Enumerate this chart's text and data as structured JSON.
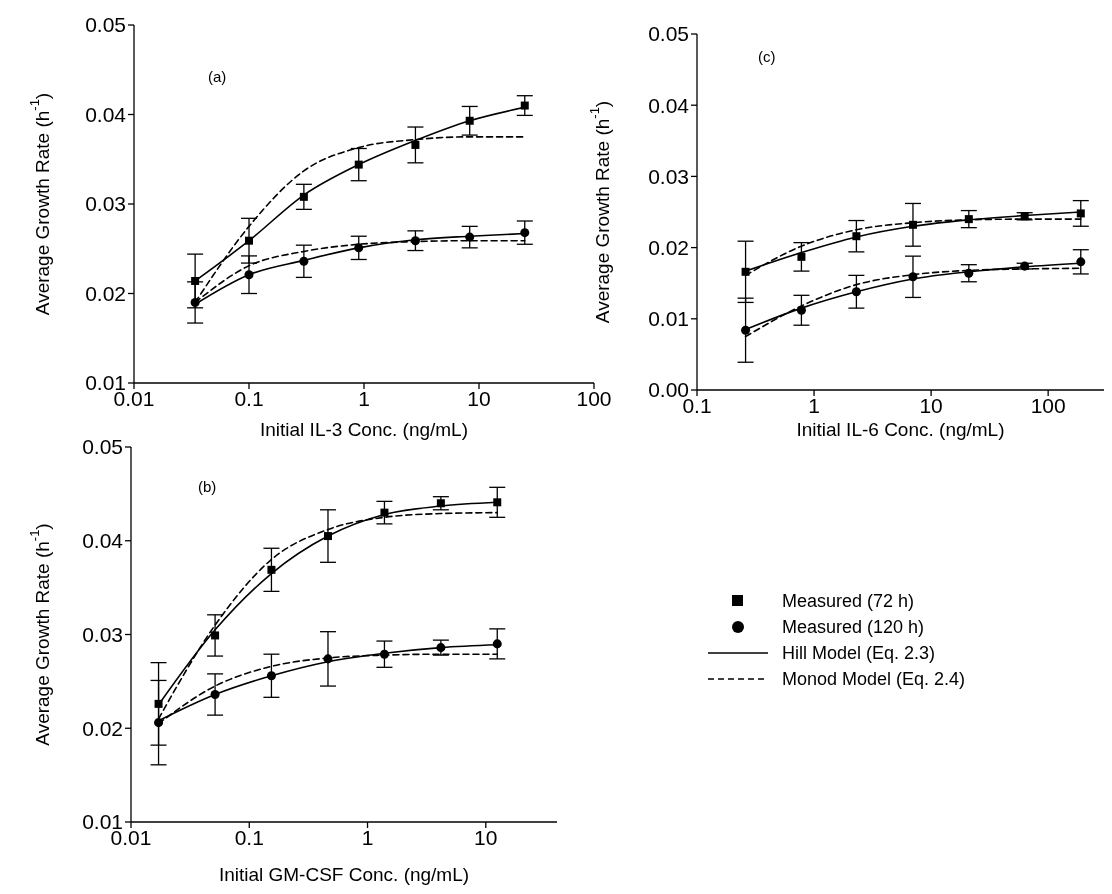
{
  "chart_data": [
    {
      "type": "scatter",
      "xlabel": "Initial IL-3 Conc. (ng/mL)",
      "ylabel": "Average Growth Rate (h$^{-1}$)",
      "annotations": [
        "(a)"
      ],
      "log": "x",
      "xlim": [
        0.01,
        100
      ],
      "xticks": [
        0.01,
        0.1,
        1,
        10,
        100
      ],
      "ylim": [
        0.01,
        0.05
      ],
      "yticks": [
        0.01,
        0.02,
        0.03,
        0.04,
        0.05
      ],
      "grid": false,
      "legend": false,
      "x": [
        0.034,
        0.1,
        0.3,
        0.9,
        2.8,
        8.3,
        25
      ],
      "series": [
        {
          "type": "scatter",
          "marker": "square",
          "color": "#000000",
          "values": [
            0.0214,
            0.0259,
            0.0308,
            0.0344,
            0.0366,
            0.0393,
            0.041
          ],
          "errors": [
            0.003,
            0.0025,
            0.0014,
            0.0018,
            0.002,
            0.0016,
            0.0011
          ]
        },
        {
          "type": "scatter",
          "marker": "circle",
          "color": "#000000",
          "values": [
            0.019,
            0.0221,
            0.0236,
            0.0251,
            0.0259,
            0.0263,
            0.0268
          ],
          "errors": [
            0.0023,
            0.0021,
            0.0018,
            0.0013,
            0.0011,
            0.0012,
            0.0013
          ]
        },
        {
          "type": "line",
          "marker": "none",
          "line_style": "solid",
          "color": "#000000",
          "values": [
            0.0214,
            0.0259,
            0.031,
            0.0344,
            0.0371,
            0.0393,
            0.0408
          ]
        },
        {
          "type": "line",
          "marker": "none",
          "line_style": "solid",
          "color": "#000000",
          "values": [
            0.0188,
            0.0221,
            0.0237,
            0.0251,
            0.026,
            0.0264,
            0.0267
          ]
        },
        {
          "type": "line",
          "marker": "none",
          "line_style": "dashed",
          "color": "#000000",
          "values": [
            0.019,
            0.0275,
            0.0337,
            0.0363,
            0.0372,
            0.0375,
            0.0375
          ]
        },
        {
          "type": "line",
          "marker": "none",
          "line_style": "dashed",
          "color": "#000000",
          "values": [
            0.019,
            0.0231,
            0.0247,
            0.0255,
            0.0258,
            0.0259,
            0.0259
          ]
        }
      ]
    },
    {
      "type": "scatter",
      "xlabel": "Initial IL-6 Conc. (ng/mL)",
      "ylabel": "Average Growth Rate (h$^{-1}$)",
      "annotations": [
        "(c)"
      ],
      "log": "x",
      "xlim": [
        0.1,
        300
      ],
      "xticks": [
        0.1,
        1,
        10,
        100
      ],
      "ylim": [
        0,
        0.05
      ],
      "yticks": [
        {
          "value": 0,
          "label": "0.00"
        },
        0.01,
        0.02,
        0.03,
        0.04,
        0.05
      ],
      "grid": false,
      "legend": false,
      "x": [
        0.26,
        0.78,
        2.3,
        7,
        21,
        63,
        190
      ],
      "series": [
        {
          "type": "scatter",
          "marker": "square",
          "color": "#000000",
          "values": [
            0.0166,
            0.0187,
            0.0216,
            0.0232,
            0.024,
            0.0244,
            0.0248
          ],
          "errors": [
            0.0043,
            0.002,
            0.0022,
            0.003,
            0.0012,
            0.0005,
            0.0018
          ]
        },
        {
          "type": "scatter",
          "marker": "circle",
          "color": "#000000",
          "values": [
            0.0084,
            0.0112,
            0.0138,
            0.0159,
            0.0164,
            0.0174,
            0.018
          ],
          "errors": [
            0.0045,
            0.0021,
            0.0023,
            0.0029,
            0.0012,
            0.0004,
            0.0017
          ]
        },
        {
          "type": "line",
          "marker": "none",
          "line_style": "solid",
          "color": "#000000",
          "values": [
            0.0167,
            0.0193,
            0.0215,
            0.023,
            0.0239,
            0.0245,
            0.025
          ]
        },
        {
          "type": "line",
          "marker": "none",
          "line_style": "solid",
          "color": "#000000",
          "values": [
            0.0085,
            0.0115,
            0.0138,
            0.0156,
            0.0166,
            0.0173,
            0.0178
          ]
        },
        {
          "type": "line",
          "marker": "none",
          "line_style": "dashed",
          "color": "#000000",
          "values": [
            0.0161,
            0.0202,
            0.0225,
            0.0235,
            0.0239,
            0.024,
            0.024
          ]
        },
        {
          "type": "line",
          "marker": "none",
          "line_style": "dashed",
          "color": "#000000",
          "values": [
            0.0075,
            0.0118,
            0.0148,
            0.0162,
            0.0168,
            0.017,
            0.0171
          ]
        }
      ]
    },
    {
      "type": "scatter",
      "xlabel": "Initial GM-CSF Conc. (ng/mL)",
      "ylabel": "Average Growth Rate (h$^{-1}$)",
      "annotations": [
        "(b)"
      ],
      "log": "x",
      "xlim": [
        0.01,
        40
      ],
      "xticks": [
        0.01,
        0.1,
        1,
        10
      ],
      "ylim": [
        0.01,
        0.05
      ],
      "yticks": [
        0.01,
        0.02,
        0.03,
        0.04,
        0.05
      ],
      "grid": false,
      "legend": "right",
      "x": [
        0.0171,
        0.0514,
        0.154,
        0.463,
        1.39,
        4.17,
        12.5
      ],
      "series": [
        {
          "name": "Measured (72 h)",
          "type": "scatter",
          "marker": "square",
          "color": "#000000",
          "values": [
            0.0226,
            0.0299,
            0.0369,
            0.0405,
            0.043,
            0.044,
            0.0441
          ],
          "errors": [
            0.0044,
            0.0022,
            0.0023,
            0.0028,
            0.0012,
            0.0007,
            0.0016
          ]
        },
        {
          "name": "Measured (120 h)",
          "type": "scatter",
          "marker": "circle",
          "color": "#000000",
          "values": [
            0.0206,
            0.0236,
            0.0256,
            0.0274,
            0.0279,
            0.0286,
            0.029
          ],
          "errors": [
            0.0045,
            0.0022,
            0.0023,
            0.0029,
            0.0014,
            0.0008,
            0.0016
          ]
        },
        {
          "name": "Hill Model (Eq. 2.3)",
          "type": "line",
          "marker": "none",
          "line_style": "solid",
          "color": "#000000",
          "values": [
            0.0225,
            0.0305,
            0.0365,
            0.0405,
            0.0428,
            0.0437,
            0.0441
          ]
        },
        {
          "type": "line",
          "marker": "none",
          "line_style": "solid",
          "color": "#000000",
          "values": [
            0.0208,
            0.0236,
            0.0256,
            0.0271,
            0.028,
            0.0286,
            0.0289
          ]
        },
        {
          "name": "Monod Model (Eq. 2.4)",
          "type": "line",
          "marker": "none",
          "line_style": "dashed",
          "color": "#000000",
          "values": [
            0.021,
            0.031,
            0.038,
            0.0412,
            0.0425,
            0.0429,
            0.043
          ]
        },
        {
          "type": "line",
          "marker": "none",
          "line_style": "dashed",
          "color": "#000000",
          "values": [
            0.0205,
            0.0245,
            0.0266,
            0.0275,
            0.0278,
            0.0279,
            0.0279
          ]
        }
      ]
    }
  ]
}
